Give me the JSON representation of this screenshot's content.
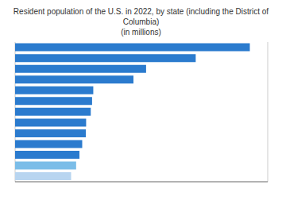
{
  "chart_data": {
    "type": "bar",
    "title": "Resident population of the U.S. in 2022, by state (including the District of Columbia)",
    "subtitle": "(in millions)",
    "orientation": "horizontal",
    "categories": [
      null,
      null,
      null,
      null,
      null,
      null,
      null,
      null,
      null,
      null,
      null,
      null,
      null
    ],
    "values": [
      39.03,
      30.03,
      21.78,
      19.68,
      13.0,
      12.8,
      12.58,
      11.81,
      11.76,
      11.16,
      10.7,
      10.15,
      9.31
    ],
    "colors": [
      "#2b7bce",
      "#2b7bce",
      "#2b7bce",
      "#2b7bce",
      "#2b7bce",
      "#2b7bce",
      "#2b7bce",
      "#2b7bce",
      "#2b7bce",
      "#2b7bce",
      "#2b7bce",
      "#7bbde8",
      "#b8d5f0"
    ],
    "xlim": [
      0,
      42
    ],
    "xticks": [
      10,
      20,
      30,
      40
    ],
    "grid": true,
    "tick_labels": false
  }
}
